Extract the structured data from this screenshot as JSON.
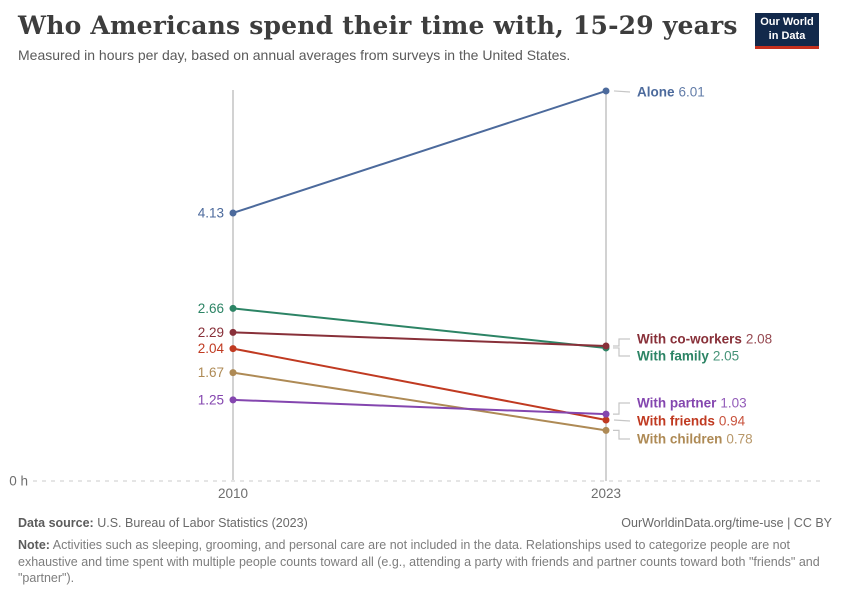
{
  "header": {
    "title": "Who Americans spend their time with, 15-29 years",
    "subtitle": "Measured in hours per day, based on annual averages from surveys in the United States."
  },
  "logo": {
    "line1": "Our World",
    "line2": "in Data"
  },
  "chart_data": {
    "type": "line",
    "subtype": "slope",
    "title": "Who Americans spend their time with, 15-29 years",
    "subtitle": "Measured in hours per day, based on annual averages from surveys in the United States.",
    "x": [
      "2010",
      "2023"
    ],
    "xlabel": "",
    "ylabel": "hours per day",
    "ylim": [
      0,
      6.2
    ],
    "y_zero_label": "0 h",
    "grid": "dashed baseline at zero only",
    "legend_position": "labels at line ends",
    "series": [
      {
        "name": "Alone",
        "color": "#4C6A9C",
        "values": [
          4.13,
          6.01
        ]
      },
      {
        "name": "With family",
        "color": "#2C8465",
        "values": [
          2.66,
          2.05
        ]
      },
      {
        "name": "With co-workers",
        "color": "#883039",
        "values": [
          2.29,
          2.08
        ]
      },
      {
        "name": "With friends",
        "color": "#C03A21",
        "values": [
          2.04,
          0.94
        ]
      },
      {
        "name": "With children",
        "color": "#AE8A55",
        "values": [
          1.67,
          0.78
        ]
      },
      {
        "name": "With partner",
        "color": "#8446AF",
        "values": [
          1.25,
          1.03
        ]
      }
    ]
  },
  "footer": {
    "datasource_label": "Data source:",
    "datasource_text": " U.S. Bureau of Labor Statistics (2023)",
    "link": "OurWorldinData.org/time-use | CC BY",
    "note_label": "Note:",
    "note_text": " Activities such as sleeping, grooming, and personal care are not included in the data. Relationships used to categorize people are not exhaustive and time spent with multiple people counts toward all (e.g., attending a party with friends and partner counts toward both \"friends\" and \"partner\")."
  }
}
